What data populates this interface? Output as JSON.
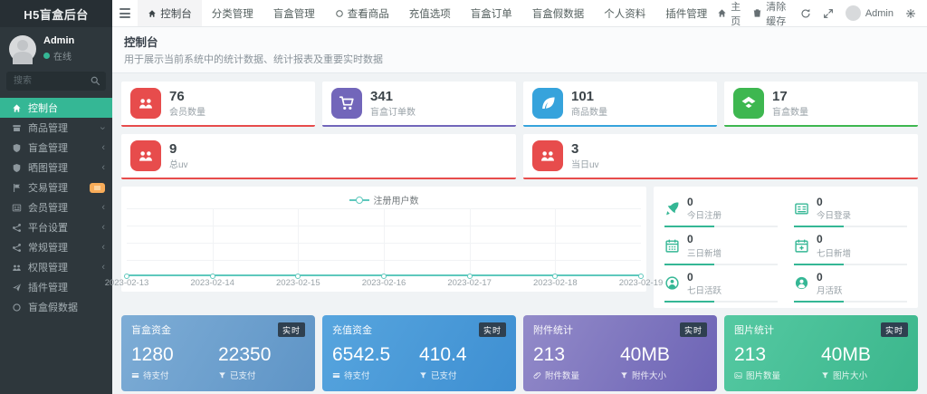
{
  "sidebar": {
    "logo": "H5盲盒后台",
    "user": {
      "name": "Admin",
      "status": "在线"
    },
    "search_placeholder": "搜索",
    "items": [
      {
        "label": "控制台"
      },
      {
        "label": "商品管理"
      },
      {
        "label": "盲盒管理"
      },
      {
        "label": "晒图管理"
      },
      {
        "label": "交易管理",
        "badge_color": "#f8ac59"
      },
      {
        "label": "会员管理"
      },
      {
        "label": "平台设置"
      },
      {
        "label": "常规管理"
      },
      {
        "label": "权限管理"
      },
      {
        "label": "插件管理"
      },
      {
        "label": "盲盒假数据"
      }
    ],
    "active_color": "#35b795"
  },
  "navbar": {
    "tabs": [
      {
        "label": "控制台"
      },
      {
        "label": "分类管理"
      },
      {
        "label": "盲盒管理"
      },
      {
        "label": "查看商品"
      },
      {
        "label": "充值选项"
      },
      {
        "label": "盲盒订单"
      },
      {
        "label": "盲盒假数据"
      },
      {
        "label": "个人资料"
      },
      {
        "label": "插件管理"
      }
    ],
    "right": {
      "home": "主页",
      "clear_cache": "清除缓存",
      "user": "Admin"
    }
  },
  "header": {
    "title": "控制台",
    "subtitle": "用于展示当前系统中的统计数据、统计报表及重要实时数据"
  },
  "stats": [
    {
      "value": "76",
      "label": "会员数量",
      "color": "#e74c4c"
    },
    {
      "value": "341",
      "label": "盲盒订单数",
      "color": "#7266ba"
    },
    {
      "value": "101",
      "label": "商品数量",
      "color": "#36a3dc"
    },
    {
      "value": "17",
      "label": "盲盒数量",
      "color": "#3eb750"
    }
  ],
  "uv_stats": [
    {
      "value": "9",
      "label": "总uv",
      "color": "#e74c4c"
    },
    {
      "value": "3",
      "label": "当日uv",
      "color": "#e74c4c"
    }
  ],
  "chart_data": {
    "type": "line",
    "title": "",
    "x": [
      "2023-02-13",
      "2023-02-14",
      "2023-02-15",
      "2023-02-16",
      "2023-02-17",
      "2023-02-18",
      "2023-02-19"
    ],
    "series": [
      {
        "name": "注册用户数",
        "values": [
          0,
          0,
          0,
          0,
          0,
          0,
          0
        ]
      }
    ],
    "ylim": [
      0,
      1
    ],
    "grid": true,
    "legend_position": "top-center",
    "line_color": "#5ec8bd"
  },
  "quick_stats": [
    {
      "value": "0",
      "label": "今日注册"
    },
    {
      "value": "0",
      "label": "今日登录"
    },
    {
      "value": "0",
      "label": "三日新增"
    },
    {
      "value": "0",
      "label": "七日新增"
    },
    {
      "value": "0",
      "label": "七日活跃"
    },
    {
      "value": "0",
      "label": "月活跃"
    }
  ],
  "quick_stats_color": "#35b795",
  "money_cards": [
    {
      "title": "盲盒资金",
      "badge": "实时",
      "left_value": "1280",
      "left_label": "待支付",
      "right_value": "22350",
      "right_label": "已支付",
      "gradient": [
        "#7eadd6",
        "#5e94c6"
      ]
    },
    {
      "title": "充值资金",
      "badge": "实时",
      "left_value": "6542.5",
      "left_label": "待支付",
      "right_value": "410.4",
      "right_label": "已支付",
      "gradient": [
        "#57a5de",
        "#3e8fd2"
      ]
    },
    {
      "title": "附件统计",
      "badge": "实时",
      "left_value": "213",
      "left_label": "附件数量",
      "right_value": "40MB",
      "right_label": "附件大小",
      "gradient": [
        "#938bc9",
        "#6c63b5"
      ]
    },
    {
      "title": "图片统计",
      "badge": "实时",
      "left_value": "213",
      "left_label": "图片数量",
      "right_value": "40MB",
      "right_label": "图片大小",
      "gradient": [
        "#55c9a2",
        "#3bb68c"
      ]
    }
  ]
}
